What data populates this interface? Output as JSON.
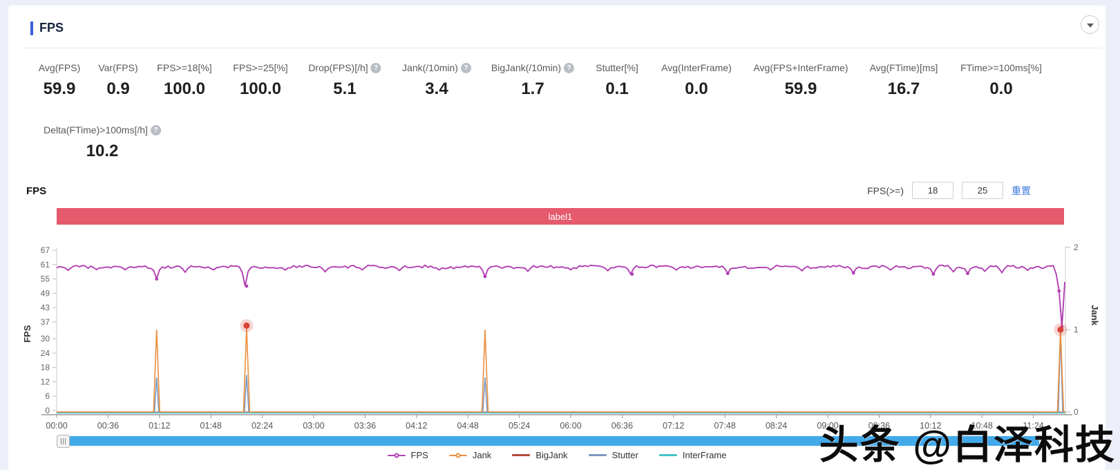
{
  "panel": {
    "title": "FPS"
  },
  "icons": {
    "help": "?"
  },
  "metrics_row1": [
    {
      "label": "Avg(FPS)",
      "value": "59.9"
    },
    {
      "label": "Var(FPS)",
      "value": "0.9"
    },
    {
      "label": "FPS>=18[%]",
      "value": "100.0"
    },
    {
      "label": "FPS>=25[%]",
      "value": "100.0"
    },
    {
      "label": "Drop(FPS)[/h]",
      "value": "5.1",
      "help": true
    },
    {
      "label": "Jank(/10min)",
      "value": "3.4",
      "help": true
    },
    {
      "label": "BigJank(/10min)",
      "value": "1.7",
      "help": true
    },
    {
      "label": "Stutter[%]",
      "value": "0.1"
    },
    {
      "label": "Avg(InterFrame)",
      "value": "0.0"
    },
    {
      "label": "Avg(FPS+InterFrame)",
      "value": "59.9"
    },
    {
      "label": "Avg(FTime)[ms]",
      "value": "16.7"
    },
    {
      "label": "FTime>=100ms[%]",
      "value": "0.0"
    }
  ],
  "metrics_row2": [
    {
      "label": "Delta(FTime)>100ms[/h]",
      "value": "10.2",
      "help": true
    }
  ],
  "chart_header": {
    "title": "FPS",
    "filter_label": "FPS(>=)",
    "threshold1": "18",
    "threshold2": "25",
    "reset_label": "重置"
  },
  "banner": {
    "text": "label1",
    "color": "#e65a6e"
  },
  "legend": [
    {
      "label": "FPS",
      "color": "#b13fb3",
      "marker": "circle"
    },
    {
      "label": "Jank",
      "color": "#e98f3e",
      "marker": "circle"
    },
    {
      "label": "BigJank",
      "color": "#b44a3c",
      "marker": "line"
    },
    {
      "label": "Stutter",
      "color": "#7d98c0",
      "marker": "line"
    },
    {
      "label": "InterFrame",
      "color": "#45c3cb",
      "marker": "line"
    }
  ],
  "watermark": "头条 @白泽科技",
  "chart_data": {
    "type": "line",
    "title": "FPS",
    "x_axis": {
      "tick_labels": [
        "00:00",
        "00:36",
        "01:12",
        "01:48",
        "02:24",
        "03:00",
        "03:36",
        "04:12",
        "04:48",
        "05:24",
        "06:00",
        "06:36",
        "07:12",
        "07:48",
        "08:24",
        "09:00",
        "09:36",
        "10:12",
        "10:48",
        "11:24"
      ],
      "tick_interval_seconds": 36,
      "total_seconds": 706
    },
    "y_left": {
      "label": "FPS",
      "min": 0,
      "max": 67,
      "ticks": [
        0,
        6,
        12,
        18,
        24,
        30,
        37,
        43,
        49,
        55,
        61,
        67
      ]
    },
    "y_right": {
      "label": "Jank",
      "min": 0,
      "max": 2,
      "ticks": [
        0,
        1,
        2
      ]
    },
    "grid": false,
    "legend_position": "bottom",
    "event_marker_color": "#d84335",
    "series": [
      {
        "name": "FPS",
        "color": "#b13fb3",
        "axis": "left",
        "baseline": 60,
        "dips": [
          [
            8,
            58.6
          ],
          [
            28,
            58.9
          ],
          [
            48,
            58.8
          ],
          [
            70,
            55
          ],
          [
            90,
            57.8
          ],
          [
            110,
            58.8
          ],
          [
            133,
            52
          ],
          [
            160,
            58.7
          ],
          [
            189,
            58
          ],
          [
            215,
            58.8
          ],
          [
            240,
            58.5
          ],
          [
            268,
            58.7
          ],
          [
            300,
            56
          ],
          [
            331,
            58.2
          ],
          [
            360,
            58.8
          ],
          [
            387,
            58.4
          ],
          [
            403,
            57
          ],
          [
            435,
            58.7
          ],
          [
            470,
            57.3
          ],
          [
            500,
            58.8
          ],
          [
            522,
            58.4
          ],
          [
            558,
            57.5
          ],
          [
            585,
            58.7
          ],
          [
            614,
            57
          ],
          [
            628,
            58
          ],
          [
            638,
            57.3
          ],
          [
            651,
            58.2
          ],
          [
            663,
            57.6
          ],
          [
            680,
            58.6
          ],
          [
            702,
            50
          ],
          [
            704,
            35
          ]
        ]
      },
      {
        "name": "Jank",
        "color": "#e98f3e",
        "axis": "right",
        "baseline": 0,
        "spikes": [
          [
            70,
            1.0
          ],
          [
            133,
            1.02
          ],
          [
            300,
            1.0
          ],
          [
            703,
            1.0
          ]
        ]
      },
      {
        "name": "BigJank",
        "color": "#b44a3c",
        "axis": "right",
        "baseline": 0,
        "events": [
          [
            133,
            1.05
          ],
          [
            703,
            1.0
          ]
        ]
      },
      {
        "name": "Stutter",
        "color": "#7d98c0",
        "axis": "right",
        "baseline": 0,
        "spikes": [
          [
            70,
            0.42
          ],
          [
            133,
            0.45
          ],
          [
            300,
            0.42
          ],
          [
            703,
            0.97
          ]
        ]
      },
      {
        "name": "InterFrame",
        "color": "#45c3cb",
        "axis": "right",
        "baseline": 0
      }
    ]
  }
}
